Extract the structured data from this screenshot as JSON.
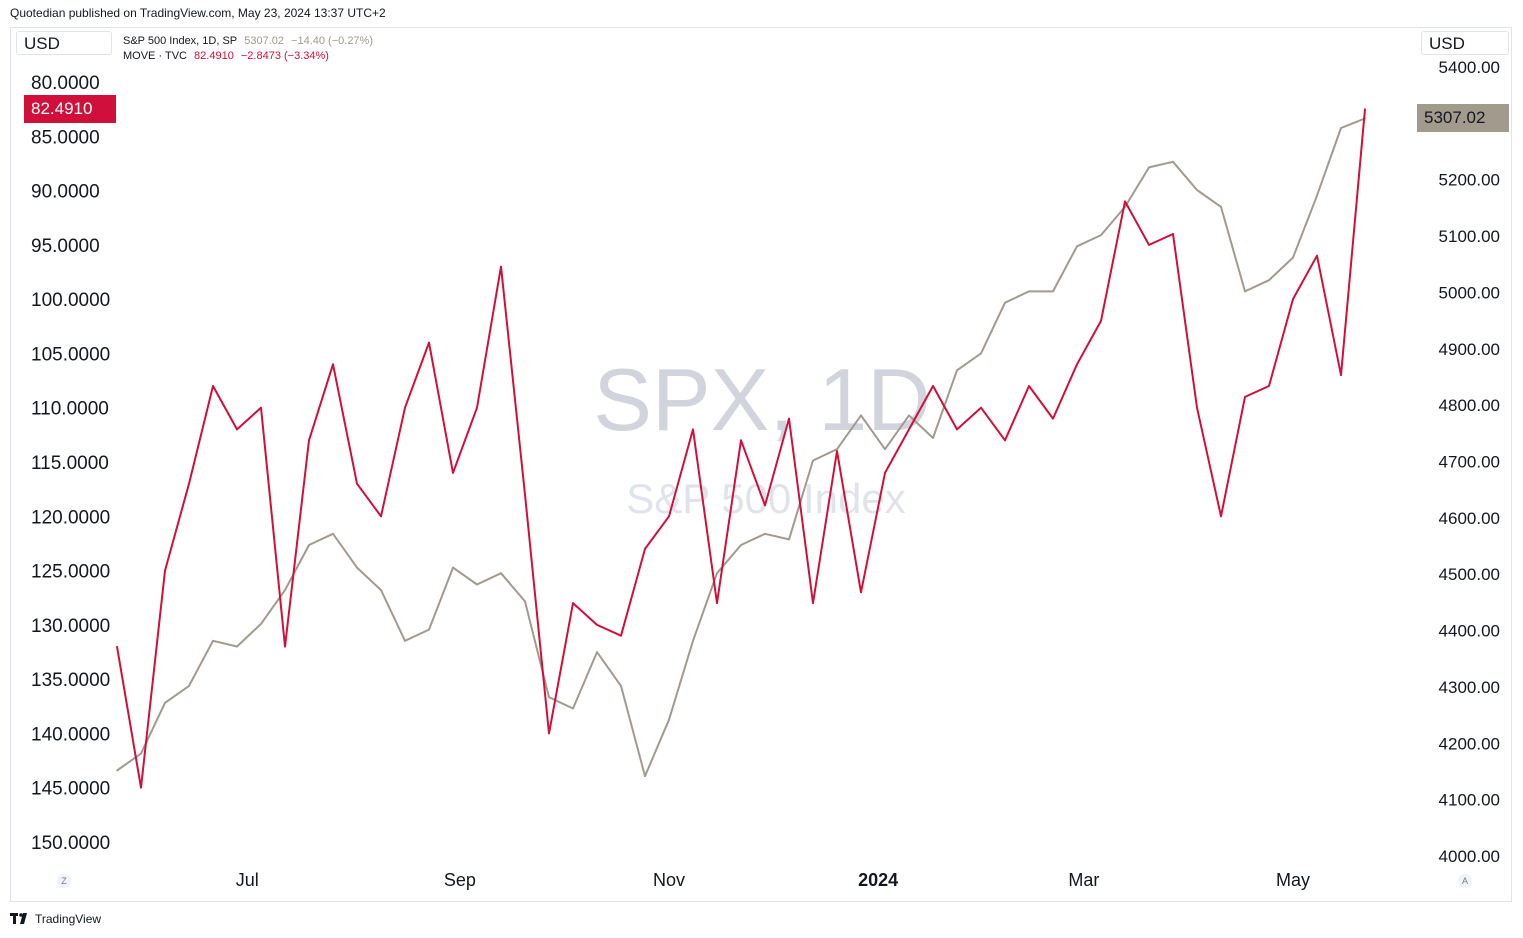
{
  "header": {
    "credit": "Quotedian published on TradingView.com, May 23, 2024 13:37 UTC+2"
  },
  "left_currency": "USD",
  "right_currency": "USD",
  "legend": {
    "spx": {
      "name": "S&P 500 Index, 1D, SP",
      "value": "5307.02",
      "change": "−14.40 (−0.27%)"
    },
    "move": {
      "name": "MOVE · TVC",
      "value": "82.4910",
      "change": "−2.8473 (−3.34%)"
    }
  },
  "watermark": {
    "symbol": "SPX, 1D",
    "name": "S&P 500 Index"
  },
  "last_price_labels": {
    "move": "82.4910",
    "spx": "5307.02"
  },
  "colors": {
    "spx_line": "#a39a8e",
    "move_line": "#d0103a",
    "move_tag": "#d0103a",
    "spx_tag": "#a39a8e",
    "watermark": "#d1d4dc"
  },
  "corner_buttons": {
    "left": "Z",
    "right": "A"
  },
  "footer": {
    "brand": "TradingView"
  },
  "chart_data": {
    "type": "line",
    "x_tick_labels": [
      "Jul",
      "Sep",
      "Nov",
      "2024",
      "Mar",
      "May"
    ],
    "left_axis": {
      "inverted": true,
      "ylim": [
        150,
        80
      ],
      "tick_labels": [
        "80.0000",
        "85.0000",
        "90.0000",
        "95.0000",
        "100.0000",
        "105.0000",
        "110.0000",
        "115.0000",
        "120.0000",
        "125.0000",
        "130.0000",
        "135.0000",
        "140.0000",
        "145.0000",
        "150.0000"
      ]
    },
    "right_axis": {
      "ylim": [
        4000,
        5400
      ],
      "tick_labels": [
        "5400.00",
        "5300.00",
        "5200.00",
        "5100.00",
        "5000.00",
        "4900.00",
        "4800.00",
        "4700.00",
        "4600.00",
        "4500.00",
        "4400.00",
        "4300.00",
        "4200.00",
        "4100.00",
        "4000.00"
      ]
    },
    "series": [
      {
        "name": "S&P 500 Index, 1D, SP",
        "axis": "right",
        "x": [
          "2023-05-24",
          "2023-05-31",
          "2023-06-07",
          "2023-06-14",
          "2023-06-21",
          "2023-06-28",
          "2023-07-05",
          "2023-07-12",
          "2023-07-19",
          "2023-07-26",
          "2023-08-02",
          "2023-08-09",
          "2023-08-16",
          "2023-08-23",
          "2023-08-30",
          "2023-09-06",
          "2023-09-13",
          "2023-09-20",
          "2023-09-27",
          "2023-10-04",
          "2023-10-11",
          "2023-10-18",
          "2023-10-25",
          "2023-11-01",
          "2023-11-08",
          "2023-11-15",
          "2023-11-22",
          "2023-11-29",
          "2023-12-06",
          "2023-12-13",
          "2023-12-20",
          "2023-12-27",
          "2024-01-03",
          "2024-01-10",
          "2024-01-17",
          "2024-01-24",
          "2024-01-31",
          "2024-02-07",
          "2024-02-14",
          "2024-02-21",
          "2024-02-28",
          "2024-03-06",
          "2024-03-13",
          "2024-03-20",
          "2024-03-27",
          "2024-04-03",
          "2024-04-10",
          "2024-04-17",
          "2024-04-24",
          "2024-05-01",
          "2024-05-08",
          "2024-05-15",
          "2024-05-22"
        ],
        "values": [
          4150,
          4180,
          4270,
          4300,
          4380,
          4370,
          4410,
          4470,
          4550,
          4570,
          4510,
          4470,
          4380,
          4400,
          4510,
          4480,
          4500,
          4450,
          4280,
          4260,
          4360,
          4300,
          4140,
          4240,
          4380,
          4500,
          4550,
          4570,
          4560,
          4700,
          4720,
          4780,
          4720,
          4780,
          4740,
          4860,
          4890,
          4980,
          5000,
          5000,
          5080,
          5100,
          5150,
          5220,
          5230,
          5180,
          5150,
          5000,
          5020,
          5060,
          5170,
          5290,
          5307.02
        ]
      },
      {
        "name": "MOVE · TVC",
        "axis": "left",
        "x": [
          "2023-05-24",
          "2023-05-31",
          "2023-06-07",
          "2023-06-14",
          "2023-06-21",
          "2023-06-28",
          "2023-07-05",
          "2023-07-12",
          "2023-07-19",
          "2023-07-26",
          "2023-08-02",
          "2023-08-09",
          "2023-08-16",
          "2023-08-23",
          "2023-08-30",
          "2023-09-06",
          "2023-09-13",
          "2023-09-20",
          "2023-09-27",
          "2023-10-04",
          "2023-10-11",
          "2023-10-18",
          "2023-10-25",
          "2023-11-01",
          "2023-11-08",
          "2023-11-15",
          "2023-11-22",
          "2023-11-29",
          "2023-12-06",
          "2023-12-13",
          "2023-12-20",
          "2023-12-27",
          "2024-01-03",
          "2024-01-10",
          "2024-01-17",
          "2024-01-24",
          "2024-01-31",
          "2024-02-07",
          "2024-02-14",
          "2024-02-21",
          "2024-02-28",
          "2024-03-06",
          "2024-03-13",
          "2024-03-20",
          "2024-03-27",
          "2024-04-03",
          "2024-04-10",
          "2024-04-17",
          "2024-04-24",
          "2024-05-01",
          "2024-05-08",
          "2024-05-15",
          "2024-05-22"
        ],
        "values": [
          132,
          145,
          125,
          117,
          108,
          112,
          110,
          132,
          113,
          106,
          117,
          120,
          110,
          104,
          116,
          110,
          97,
          118,
          140,
          128,
          130,
          131,
          123,
          120,
          112,
          128,
          113,
          119,
          111,
          128,
          114,
          127,
          116,
          112,
          108,
          112,
          110,
          113,
          108,
          111,
          106,
          102,
          91,
          95,
          94,
          110,
          120,
          109,
          108,
          100,
          96,
          107,
          82.491
        ]
      }
    ]
  }
}
